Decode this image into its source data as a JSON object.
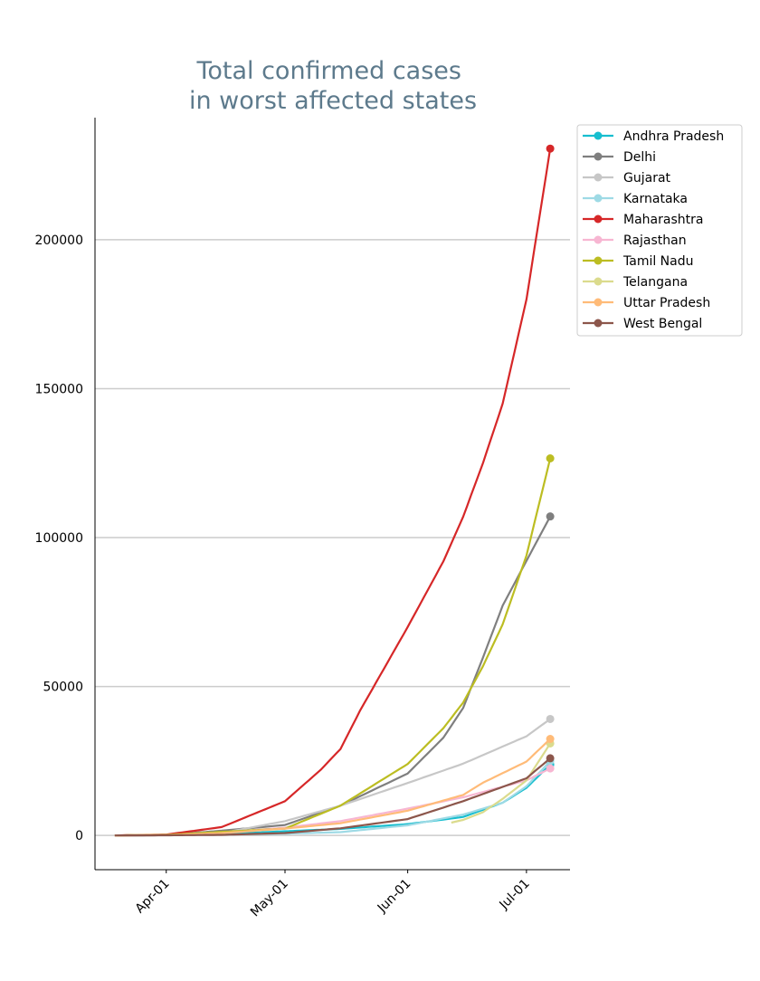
{
  "chart_data": {
    "type": "line",
    "title": "Total confirmed cases\nin worst affected states",
    "title_lines": [
      "Total confirmed cases",
      "in worst affected states"
    ],
    "xlabel": "",
    "ylabel": "",
    "x_tick_labels": [
      "Apr-01",
      "May-01",
      "Jun-01",
      "Jul-01"
    ],
    "x_ticks": [
      "2020-04-01",
      "2020-05-01",
      "2020-06-01",
      "2020-07-01"
    ],
    "xlim": [
      "2020-03-14",
      "2020-07-12"
    ],
    "y_ticks": [
      0,
      50000,
      100000,
      150000,
      200000
    ],
    "y_tick_labels": [
      "0",
      "50000",
      "100000",
      "150000",
      "200000"
    ],
    "ylim": [
      -11500,
      241000
    ],
    "grid": "horizontal",
    "legend_position": "outside-right",
    "series": [
      {
        "name": "Andhra Pradesh",
        "color": "#17becf",
        "x": [
          "2020-03-19",
          "2020-04-01",
          "2020-04-15",
          "2020-05-01",
          "2020-05-15",
          "2020-06-01",
          "2020-06-15",
          "2020-06-25",
          "2020-07-01",
          "2020-07-07"
        ],
        "y": [
          0,
          100,
          500,
          1400,
          2200,
          3800,
          6200,
          11000,
          16000,
          23800
        ]
      },
      {
        "name": "Delhi",
        "color": "#7f7f7f",
        "x": [
          "2020-03-19",
          "2020-04-01",
          "2020-04-15",
          "2020-05-01",
          "2020-05-15",
          "2020-06-01",
          "2020-06-10",
          "2020-06-15",
          "2020-06-20",
          "2020-06-25",
          "2020-07-01",
          "2020-07-07"
        ],
        "y": [
          0,
          150,
          1600,
          3500,
          10000,
          20800,
          32800,
          42800,
          59700,
          77200,
          92200,
          107100
        ]
      },
      {
        "name": "Gujarat",
        "color": "#c7c7c7",
        "x": [
          "2020-03-19",
          "2020-04-01",
          "2020-04-15",
          "2020-05-01",
          "2020-05-15",
          "2020-06-01",
          "2020-06-15",
          "2020-07-01",
          "2020-07-07"
        ],
        "y": [
          0,
          80,
          800,
          4800,
          10000,
          17600,
          24100,
          33300,
          39100
        ]
      },
      {
        "name": "Karnataka",
        "color": "#9edae5",
        "x": [
          "2020-03-19",
          "2020-04-01",
          "2020-04-15",
          "2020-05-01",
          "2020-05-15",
          "2020-06-01",
          "2020-06-15",
          "2020-06-25",
          "2020-07-01",
          "2020-07-07"
        ],
        "y": [
          0,
          100,
          300,
          600,
          1100,
          3400,
          7000,
          11000,
          16500,
          25000
        ]
      },
      {
        "name": "Maharashtra",
        "color": "#d62728",
        "x": [
          "2020-03-19",
          "2020-04-01",
          "2020-04-15",
          "2020-05-01",
          "2020-05-10",
          "2020-05-15",
          "2020-05-20",
          "2020-06-01",
          "2020-06-10",
          "2020-06-15",
          "2020-06-20",
          "2020-06-25",
          "2020-07-01",
          "2020-07-07"
        ],
        "y": [
          0,
          300,
          2800,
          11500,
          22000,
          29000,
          42000,
          70000,
          92000,
          107000,
          125000,
          145000,
          180000,
          230600
        ]
      },
      {
        "name": "Rajasthan",
        "color": "#f7b6d2",
        "x": [
          "2020-03-19",
          "2020-04-01",
          "2020-04-15",
          "2020-05-01",
          "2020-05-15",
          "2020-06-01",
          "2020-06-15",
          "2020-07-01",
          "2020-07-07"
        ],
        "y": [
          0,
          100,
          1000,
          2600,
          4800,
          9000,
          12800,
          18500,
          22500
        ]
      },
      {
        "name": "Tamil Nadu",
        "color": "#bcbd22",
        "x": [
          "2020-03-19",
          "2020-04-01",
          "2020-04-15",
          "2020-05-01",
          "2020-05-15",
          "2020-06-01",
          "2020-06-10",
          "2020-06-15",
          "2020-06-20",
          "2020-06-25",
          "2020-07-01",
          "2020-07-07"
        ],
        "y": [
          0,
          200,
          1200,
          2300,
          10000,
          24000,
          36000,
          44600,
          56800,
          70900,
          94000,
          126600
        ]
      },
      {
        "name": "Telangana",
        "color": "#dbdb8d",
        "x": [
          "2020-06-12",
          "2020-06-15",
          "2020-06-20",
          "2020-06-25",
          "2020-07-01",
          "2020-07-07"
        ],
        "y": [
          4300,
          5200,
          7800,
          12300,
          18500,
          30900
        ]
      },
      {
        "name": "Uttar Pradesh",
        "color": "#ffbb78",
        "x": [
          "2020-03-19",
          "2020-04-01",
          "2020-04-15",
          "2020-05-01",
          "2020-05-15",
          "2020-06-01",
          "2020-06-15",
          "2020-06-20",
          "2020-07-01",
          "2020-07-07"
        ],
        "y": [
          0,
          100,
          800,
          2300,
          4100,
          8300,
          13600,
          17700,
          24800,
          32400
        ]
      },
      {
        "name": "West Bengal",
        "color": "#8c564b",
        "x": [
          "2020-03-19",
          "2020-04-01",
          "2020-04-15",
          "2020-05-01",
          "2020-05-15",
          "2020-06-01",
          "2020-06-15",
          "2020-07-01",
          "2020-07-07"
        ],
        "y": [
          0,
          40,
          200,
          800,
          2400,
          5500,
          11500,
          19200,
          25900
        ]
      }
    ]
  }
}
